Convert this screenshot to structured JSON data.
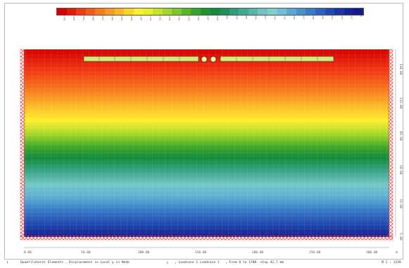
{
  "colors": {
    "legend": [
      "#d40000",
      "#e31a0a",
      "#ef3b12",
      "#f45a18",
      "#f77b1d",
      "#f99a22",
      "#fbb826",
      "#fdd42a",
      "#fff02d",
      "#e7ee2b",
      "#c4e32a",
      "#a1d52a",
      "#7ec62a",
      "#5bb52a",
      "#38a42a",
      "#1d9430",
      "#14893f",
      "#1f8f5a",
      "#2f9c77",
      "#42a991",
      "#58b6a9",
      "#6ec3bd",
      "#7fcfcf",
      "#6fbfd4",
      "#5aa9d2",
      "#4792cd",
      "#377ac6",
      "#2a62bd",
      "#2049b2",
      "#1a34a5",
      "#172395",
      "#141a88"
    ],
    "accent": "#e03030",
    "axis": "#555555"
  },
  "legend_labels": [
    "1708",
    "1665",
    "1622",
    "1580",
    "1537",
    "1494",
    "1452",
    "1409",
    "1366",
    "1323",
    "1281",
    "1238",
    "1195",
    "1153",
    "1110",
    "1067",
    "1025",
    "982",
    "939",
    "897",
    "854",
    "811",
    "769",
    "726",
    "683",
    "641",
    "598",
    "555",
    "513",
    "470",
    "427",
    "0"
  ],
  "plot": {
    "x_labels": [
      "0.00",
      "50.00",
      "100.00",
      "150.00",
      "200.00",
      "250.00",
      "300.00"
    ],
    "x_unit": "m",
    "y_labels": [
      "5.00",
      "31.00",
      "58.00",
      "85.00",
      "112.00",
      "138.00"
    ]
  },
  "status": {
    "icon": "axis-y-icon",
    "left": "Quadrilateral Elements , Displacement in Local y in Node",
    "middle": ", Loadcase 1 Loadcase 1",
    "range": ", From 0 to 1708. step 42.7 mm",
    "scale": "M 1 : 1339"
  }
}
